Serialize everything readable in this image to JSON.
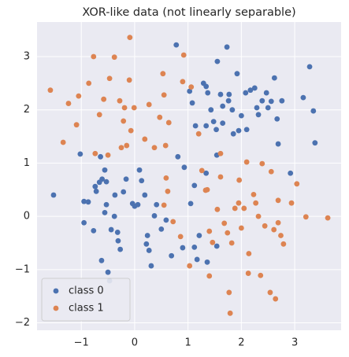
{
  "chart_data": {
    "type": "scatter",
    "title": "XOR-like data (not linearly separable)",
    "xlim": [
      -1.83,
      3.87
    ],
    "ylim": [
      -2.14,
      3.65
    ],
    "xticks": [
      {
        "value": -1,
        "label": "−1"
      },
      0,
      1,
      2,
      3
    ],
    "yticks": [
      {
        "value": -2,
        "label": "−2"
      },
      {
        "value": -1,
        "label": "−1"
      },
      0,
      1,
      2,
      3
    ],
    "grid": true,
    "legend": "lower left",
    "background": "#eaeaf2",
    "series": [
      {
        "name": "class 0",
        "color": "#4c72b0",
        "x": [
          -1.52,
          -1.02,
          -0.95,
          -0.87,
          -0.95,
          -0.77,
          -0.74,
          -0.72,
          -0.66,
          -0.61,
          -0.53,
          -0.64,
          -0.56,
          -0.53,
          -0.56,
          -0.62,
          -0.5,
          -0.47,
          -0.44,
          -0.38,
          -0.37,
          -0.32,
          -0.31,
          -0.27,
          -0.21,
          -0.16,
          -0.04,
          0.0,
          0.06,
          0.09,
          0.13,
          0.19,
          0.24,
          0.22,
          0.27,
          0.31,
          0.37,
          0.41,
          0.5,
          0.59,
          0.69,
          0.81,
          0.9,
          0.93,
          1.05,
          1.12,
          1.12,
          1.17,
          1.21,
          1.36,
          1.54,
          1.34,
          1.54,
          0.78,
          1.03,
          1.08,
          1.14,
          1.29,
          1.34,
          1.37,
          1.34,
          1.43,
          1.48,
          1.53,
          1.61,
          1.55,
          1.65,
          1.65,
          1.73,
          1.76,
          1.77,
          1.83,
          1.85,
          1.92,
          2.0,
          2.08,
          2.1,
          2.17,
          2.25,
          2.29,
          2.32,
          2.39,
          2.47,
          2.56,
          2.62,
          2.67,
          2.69,
          2.76,
          2.92,
          3.16,
          3.28,
          3.35,
          3.38,
          1.95,
          2.5
        ],
        "values": [
          0.4,
          1.17,
          0.28,
          0.27,
          -0.12,
          -0.27,
          0.56,
          0.47,
          0.64,
          0.7,
          0.65,
          1.12,
          0.87,
          0.22,
          0.07,
          -0.83,
          -1.05,
          -1.21,
          -0.25,
          0.0,
          0.4,
          -0.3,
          -0.46,
          -0.62,
          0.46,
          0.7,
          0.24,
          0.19,
          0.22,
          0.87,
          0.67,
          0.4,
          -0.36,
          -0.52,
          -0.64,
          -0.93,
          0.01,
          0.22,
          -0.24,
          -0.07,
          -0.74,
          1.12,
          -0.59,
          0.92,
          0.24,
          0.58,
          -0.58,
          -0.81,
          -0.36,
          -0.86,
          -0.56,
          0.81,
          1.15,
          3.22,
          2.35,
          2.13,
          1.7,
          2.5,
          2.44,
          2.32,
          1.7,
          2.0,
          1.78,
          1.63,
          2.29,
          2.91,
          2.07,
          1.75,
          3.18,
          2.17,
          2.29,
          2.0,
          1.55,
          2.68,
          1.89,
          2.32,
          1.63,
          2.37,
          2.41,
          2.04,
          1.91,
          2.17,
          2.32,
          2.16,
          2.6,
          1.83,
          1.36,
          2.17,
          0.81,
          2.23,
          2.81,
          1.98,
          1.38,
          1.61,
          2.04
        ]
      },
      {
        "name": "class 1",
        "color": "#dd8452",
        "x": [
          -1.58,
          -1.34,
          -1.24,
          -1.09,
          -1.05,
          -0.86,
          -0.77,
          -0.74,
          -0.66,
          -0.58,
          -0.5,
          -0.47,
          -0.38,
          -0.28,
          -0.25,
          -0.21,
          -0.19,
          -0.15,
          -0.09,
          -0.1,
          -0.01,
          -0.07,
          0.19,
          0.27,
          0.37,
          0.47,
          0.53,
          0.55,
          0.58,
          0.64,
          0.92,
          0.9,
          0.59,
          0.62,
          0.55,
          0.72,
          0.86,
          1.03,
          1.06,
          1.2,
          1.26,
          1.33,
          1.36,
          1.4,
          1.4,
          1.46,
          1.55,
          1.61,
          1.61,
          1.68,
          1.74,
          1.77,
          1.79,
          1.82,
          1.88,
          1.95,
          1.96,
          2.0,
          2.05,
          2.1,
          2.14,
          2.13,
          2.23,
          2.27,
          2.32,
          2.36,
          2.39,
          2.44,
          2.54,
          2.56,
          2.61,
          2.64,
          2.69,
          2.69,
          2.74,
          2.79,
          2.94,
          3.04,
          3.21,
          3.62
        ],
        "values": [
          2.37,
          1.39,
          2.12,
          1.72,
          2.26,
          2.5,
          3.0,
          1.18,
          1.91,
          2.2,
          1.15,
          2.59,
          2.99,
          2.17,
          1.29,
          1.79,
          2.04,
          1.33,
          3.36,
          2.56,
          2.04,
          1.61,
          1.45,
          2.1,
          1.29,
          1.86,
          2.68,
          2.28,
          1.33,
          1.76,
          3.03,
          2.53,
          0.72,
          0.47,
          0.21,
          -0.1,
          -0.38,
          -0.93,
          2.43,
          1.55,
          0.86,
          0.49,
          0.5,
          -0.28,
          -1.12,
          -0.49,
          0.13,
          1.18,
          0.74,
          -0.13,
          -0.31,
          -1.43,
          -1.82,
          -0.5,
          0.15,
          0.25,
          0.68,
          -0.22,
          0.15,
          1.02,
          -0.7,
          -1.07,
          0.41,
          0.25,
          0.0,
          -1.11,
          0.99,
          -0.18,
          -1.43,
          0.84,
          -0.25,
          -1.55,
          0.3,
          -0.12,
          -0.36,
          -0.52,
          0.25,
          0.61,
          -0.01,
          -0.03
        ]
      }
    ]
  }
}
